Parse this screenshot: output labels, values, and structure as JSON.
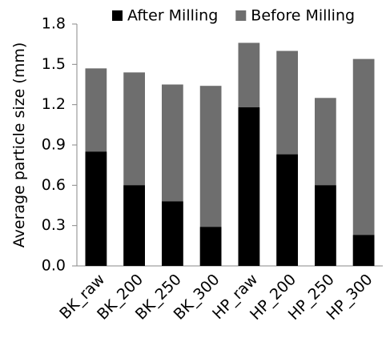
{
  "chart_data": {
    "type": "bar",
    "y_label": "Average particle size (mm)",
    "categories": [
      "BK_raw",
      "BK_200",
      "BK_250",
      "BK_300",
      "HP_raw",
      "HP_200",
      "HP_250",
      "HP_300"
    ],
    "series": [
      {
        "name": "After Milling",
        "color": "#000000",
        "values": [
          0.85,
          0.6,
          0.48,
          0.29,
          1.18,
          0.83,
          0.6,
          0.23
        ]
      },
      {
        "name": "Before Milling",
        "color": "#6e6e6e",
        "values": [
          1.47,
          1.44,
          1.35,
          1.34,
          1.66,
          1.6,
          1.25,
          1.54
        ]
      }
    ],
    "ylim": [
      0,
      1.8
    ],
    "yticks": [
      {
        "value": 0,
        "label": "0.0"
      },
      0.3,
      0.6,
      0.9,
      1.2,
      1.5,
      1.8
    ],
    "legend": "top"
  }
}
